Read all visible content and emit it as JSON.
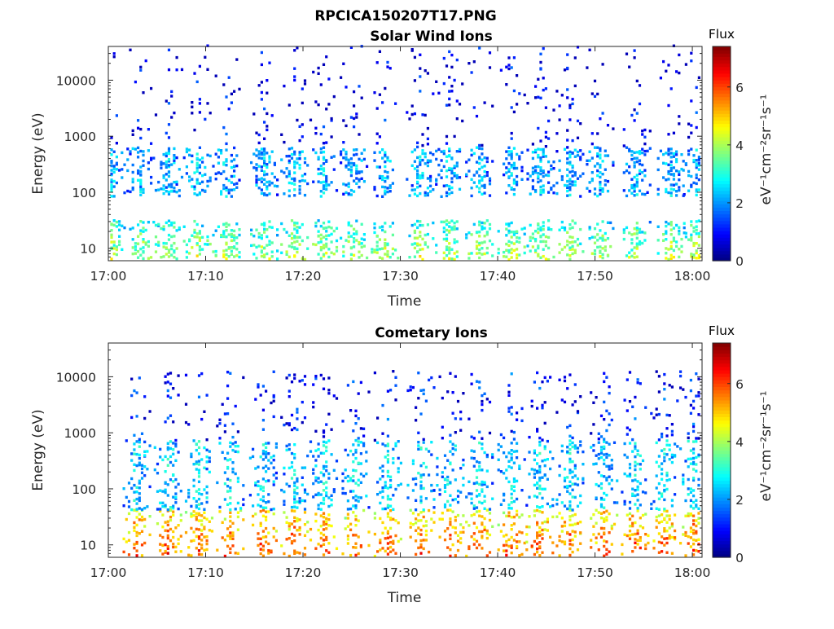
{
  "figure": {
    "title": "RPCICA150207T17.PNG"
  },
  "chart_data": [
    {
      "type": "heatmap",
      "title": "Solar Wind Ions",
      "xlabel": "Time",
      "ylabel": "Energy (eV)",
      "xlim": [
        "17:00",
        "18:01"
      ],
      "x_ticks": [
        "17:00",
        "17:10",
        "17:20",
        "17:30",
        "17:40",
        "17:50",
        "18:00"
      ],
      "y_scale": "log",
      "ylim": [
        6,
        40000
      ],
      "y_ticks": [
        "10",
        "100",
        "1000",
        "10000"
      ],
      "colorbar": {
        "title": "Flux",
        "unit_label": "eV⁻¹cm⁻²sr⁻¹s⁻¹",
        "range": [
          0,
          7.4
        ],
        "ticks": [
          "0",
          "2",
          "4",
          "6"
        ],
        "colormap": "jet"
      },
      "sweep_times_min": [
        0.2,
        3.2,
        6.1,
        9.0,
        12.0,
        15.9,
        19.0,
        22.0,
        25.1,
        28.3,
        31.9,
        34.9,
        38.0,
        41.3,
        44.3,
        47.3,
        50.4,
        54.2,
        57.7,
        60.3
      ],
      "bands": [
        {
          "name": "low-energy",
          "energy_range_eV": [
            6,
            30
          ],
          "flux": 3.0
        },
        {
          "name": "mid-energy",
          "energy_range_eV": [
            80,
            600
          ],
          "flux": 2.3
        },
        {
          "name": "high-energy",
          "energy_range_eV": [
            600,
            40000
          ],
          "flux": 1.0
        }
      ]
    },
    {
      "type": "heatmap",
      "title": "Cometary Ions",
      "xlabel": "Time",
      "ylabel": "Energy (eV)",
      "xlim": [
        "17:00",
        "18:01"
      ],
      "x_ticks": [
        "17:00",
        "17:10",
        "17:20",
        "17:30",
        "17:40",
        "17:50",
        "18:00"
      ],
      "y_scale": "log",
      "ylim": [
        6,
        40000
      ],
      "y_ticks": [
        "10",
        "100",
        "1000",
        "10000"
      ],
      "colorbar": {
        "title": "Flux",
        "unit_label": "eV⁻¹cm⁻²sr⁻¹s⁻¹",
        "range": [
          0,
          7.4
        ],
        "ticks": [
          "0",
          "2",
          "4",
          "6"
        ],
        "colormap": "jet"
      },
      "sweep_times_min": [
        2.8,
        6.0,
        9.2,
        12.4,
        15.8,
        19.0,
        22.0,
        25.3,
        28.6,
        32.0,
        35.0,
        38.0,
        41.3,
        44.2,
        47.3,
        50.8,
        54.0,
        57.0,
        60.0
      ],
      "bands": [
        {
          "name": "low-energy",
          "energy_range_eV": [
            6,
            40
          ],
          "flux": 4.8
        },
        {
          "name": "mid-energy",
          "energy_range_eV": [
            40,
            700
          ],
          "flux": 2.6
        },
        {
          "name": "high-energy",
          "energy_range_eV": [
            700,
            12000
          ],
          "flux": 1.3
        }
      ]
    }
  ]
}
